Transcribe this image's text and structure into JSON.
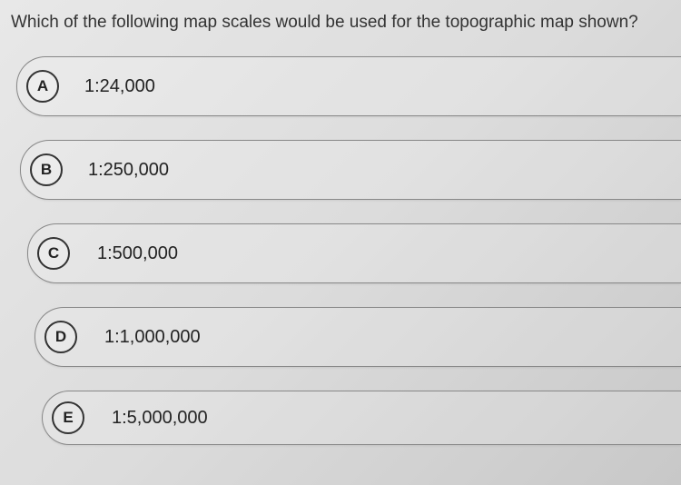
{
  "question": {
    "text": "Which of the following map scales would be used for the topographic map shown?",
    "fontsize": 19,
    "color": "#333333"
  },
  "options": [
    {
      "letter": "A",
      "label": "1:24,000"
    },
    {
      "letter": "B",
      "label": "1:250,000"
    },
    {
      "letter": "C",
      "label": "1:500,000"
    },
    {
      "letter": "D",
      "label": "1:1,000,000"
    },
    {
      "letter": "E",
      "label": "1:5,000,000"
    }
  ],
  "style": {
    "background_gradient": [
      "#e8e8e8",
      "#dcdcdc",
      "#c8c8c8"
    ],
    "option_border_color": "#888888",
    "circle_border_color": "#333333",
    "option_text_color": "#222222",
    "option_fontsize": 20,
    "letter_fontsize": 17,
    "option_height": 66,
    "option_gap": 26,
    "border_radius_left": 32
  }
}
